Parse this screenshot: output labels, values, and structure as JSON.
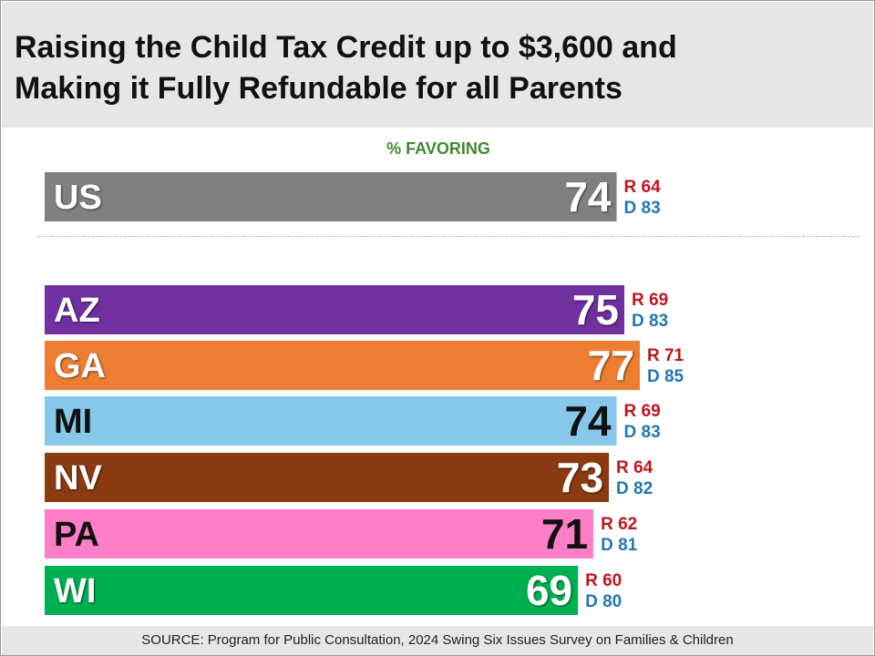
{
  "title_line1": "Raising the Child Tax Credit up to $3,600 and",
  "title_line2": "Making it Fully Refundable for all Parents",
  "subtitle": "% FAVORING",
  "source": "SOURCE: Program for Public Consultation, 2024 Swing Six Issues Survey on Families & Children",
  "colors": {
    "republican": "#c0141c",
    "democrat": "#1f77b4",
    "subtitle": "#3c8a2e"
  },
  "chart_data": {
    "type": "bar",
    "orientation": "horizontal",
    "title": "Raising the Child Tax Credit up to $3,600 and Making it Fully Refundable for all Parents",
    "xlabel": "% FAVORING",
    "groups": [
      [
        "US"
      ],
      [
        "AZ",
        "GA",
        "MI",
        "NV",
        "PA",
        "WI"
      ]
    ],
    "categories": [
      "US",
      "AZ",
      "GA",
      "MI",
      "NV",
      "PA",
      "WI"
    ],
    "values": [
      74,
      75,
      77,
      74,
      73,
      71,
      69
    ],
    "republican_prefix": "R",
    "democrat_prefix": "D",
    "republican": [
      64,
      69,
      71,
      69,
      64,
      62,
      60
    ],
    "democrat": [
      83,
      83,
      85,
      83,
      82,
      81,
      80
    ],
    "bar_colors": [
      "#808080",
      "#7030a0",
      "#ed7d31",
      "#85c8ea",
      "#8b3a12",
      "#ff7ec8",
      "#00b050"
    ],
    "label_colors": [
      "#ffffff",
      "#ffffff",
      "#ffffff",
      "#111111",
      "#ffffff",
      "#111111",
      "#ffffff"
    ]
  }
}
